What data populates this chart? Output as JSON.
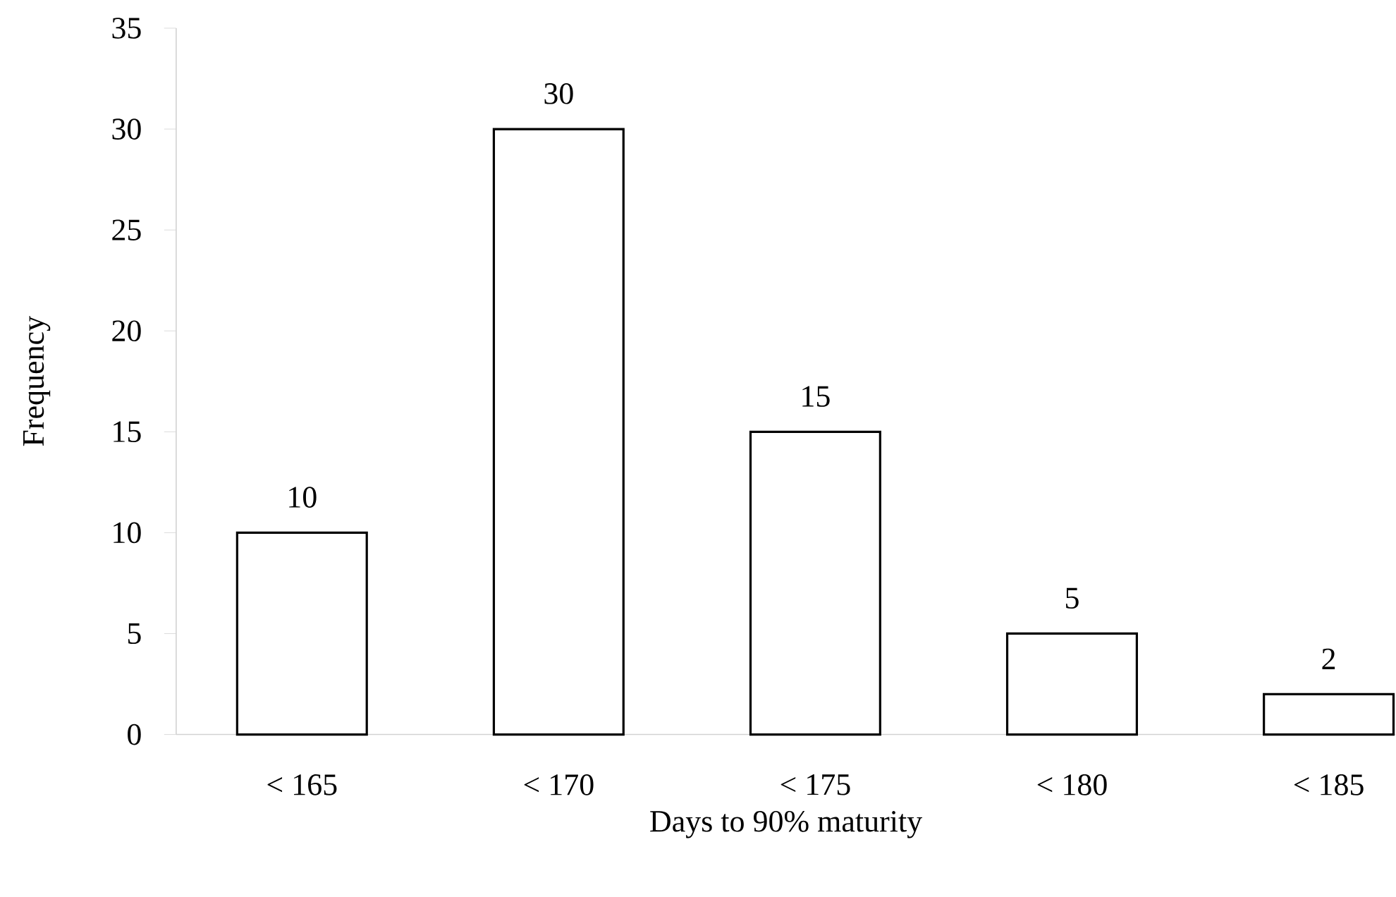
{
  "chart_data": {
    "type": "bar",
    "xlabel": "Days to 90% maturity",
    "ylabel": "Frequency",
    "categories": [
      "< 165",
      "< 170",
      "< 175",
      "< 180",
      "< 185"
    ],
    "values": [
      10,
      30,
      15,
      5,
      2
    ],
    "color": "#ffffff",
    "ylim": [
      0,
      35
    ],
    "yticks": [
      0,
      5,
      10,
      15,
      20,
      25,
      30,
      35
    ],
    "data_labels": true,
    "grid": false
  }
}
